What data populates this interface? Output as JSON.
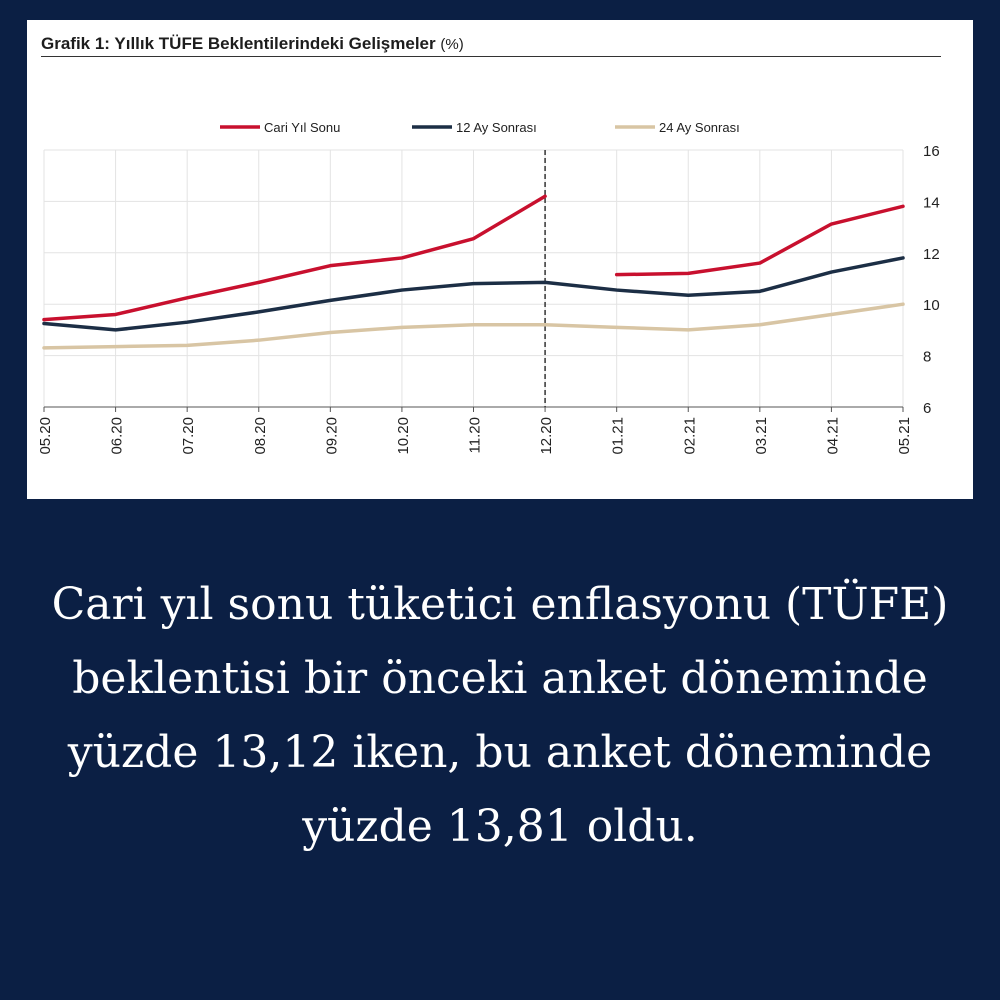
{
  "chart_data": {
    "type": "line",
    "title": "Grafik 1: Yıllık TÜFE Beklentilerindeki Gelişmeler",
    "title_unit": "(%)",
    "x": [
      "05.20",
      "06.20",
      "07.20",
      "08.20",
      "09.20",
      "10.20",
      "11.20",
      "12.20",
      "01.21",
      "02.21",
      "03.21",
      "04.21",
      "05.21"
    ],
    "ylim": [
      6,
      16
    ],
    "yticks": [
      6,
      8,
      10,
      12,
      14,
      16
    ],
    "y_axis_side": "right",
    "grid": true,
    "legend_position": "top",
    "vertical_marker_at": "12.20",
    "series": [
      {
        "name": "Cari Yıl Sonu",
        "color": "#c8102e",
        "values": [
          9.4,
          9.6,
          10.25,
          10.85,
          11.5,
          11.8,
          12.55,
          14.2,
          11.15,
          11.2,
          11.6,
          13.12,
          13.81
        ]
      },
      {
        "name": "12 Ay Sonrası",
        "color": "#1c2e45",
        "values": [
          9.25,
          9.0,
          9.3,
          9.7,
          10.15,
          10.55,
          10.8,
          10.85,
          10.55,
          10.35,
          10.5,
          11.25,
          11.8
        ]
      },
      {
        "name": "24 Ay Sonrası",
        "color": "#d8c5a4",
        "values": [
          8.3,
          8.35,
          8.4,
          8.6,
          8.9,
          9.1,
          9.2,
          9.2,
          9.1,
          9.0,
          9.2,
          9.6,
          10.0
        ]
      }
    ]
  },
  "caption": "Cari yıl sonu tüketici enflasyonu (TÜFE) beklentisi bir önceki anket döneminde yüzde 13,12 iken, bu anket döneminde yüzde 13,81 oldu."
}
